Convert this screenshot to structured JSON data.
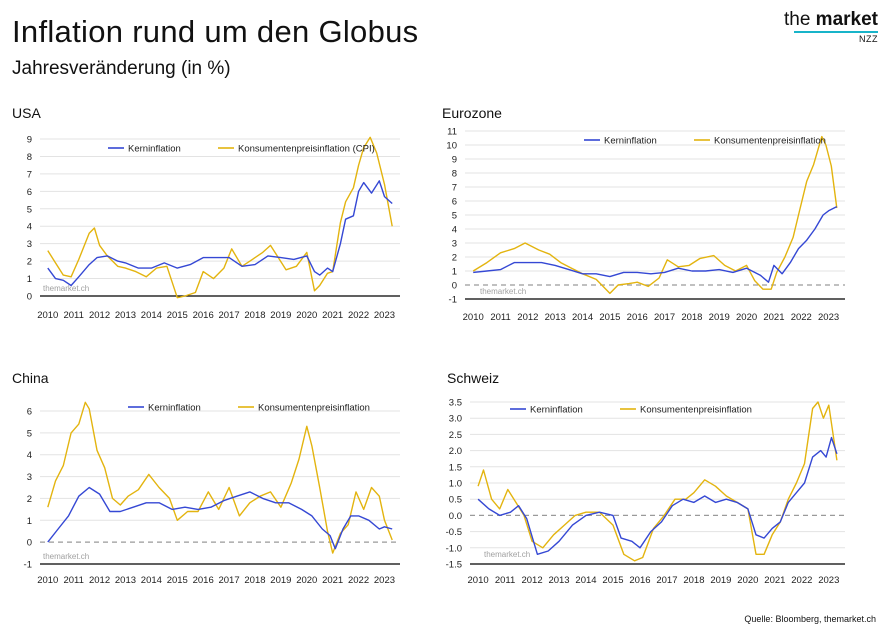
{
  "header": {
    "title": "Inflation rund um den Globus",
    "subtitle": "Jahresveränderung (in %)"
  },
  "logo": {
    "part1": "the ",
    "part2": "market",
    "sub": "NZZ"
  },
  "source": "Quelle: Bloomberg, themarket.ch",
  "colors": {
    "core": "#3548d4",
    "cpi": "#e3b40f",
    "grid": "#e3e3e3",
    "zero_dashed": "#9a9a9a"
  },
  "chart_data": [
    {
      "type": "line",
      "title": "USA",
      "watermark": "themarket.ch",
      "xlim": [
        2009.7,
        2023.6
      ],
      "ylim": [
        0,
        9
      ],
      "yticks": [
        0,
        1,
        2,
        3,
        4,
        5,
        6,
        7,
        8,
        9
      ],
      "ytick_labels": [
        "0",
        "1",
        "2",
        "3",
        "4",
        "5",
        "6",
        "7",
        "8",
        "9"
      ],
      "xtick_labels": [
        "2010",
        "2011",
        "2012",
        "2013",
        "2014",
        "2015",
        "2016",
        "2017",
        "2018",
        "2019",
        "2020",
        "2021",
        "2022",
        "2023"
      ],
      "zero_line": "solid",
      "legend": "top-center",
      "series": [
        {
          "name": "Kerninflation",
          "color": "#3548d4",
          "x": [
            2010.0,
            2010.3,
            2010.6,
            2010.9,
            2011.2,
            2011.6,
            2011.9,
            2012.3,
            2012.7,
            2013.0,
            2013.5,
            2014.0,
            2014.5,
            2015.0,
            2015.5,
            2016.0,
            2016.5,
            2017.0,
            2017.5,
            2018.0,
            2018.5,
            2019.0,
            2019.5,
            2020.0,
            2020.3,
            2020.5,
            2020.8,
            2021.0,
            2021.3,
            2021.5,
            2021.8,
            2022.0,
            2022.2,
            2022.5,
            2022.8,
            2023.0,
            2023.3
          ],
          "y": [
            1.6,
            1.0,
            0.9,
            0.6,
            1.1,
            1.8,
            2.2,
            2.3,
            2.0,
            1.9,
            1.6,
            1.6,
            1.9,
            1.6,
            1.8,
            2.2,
            2.2,
            2.2,
            1.7,
            1.8,
            2.3,
            2.2,
            2.1,
            2.3,
            1.4,
            1.2,
            1.6,
            1.4,
            3.0,
            4.4,
            4.6,
            6.0,
            6.5,
            5.9,
            6.6,
            5.7,
            5.3
          ]
        },
        {
          "name": "Konsumentenpreisinflation (CPI)",
          "color": "#e3b40f",
          "x": [
            2010.0,
            2010.3,
            2010.6,
            2010.9,
            2011.2,
            2011.6,
            2011.8,
            2012.0,
            2012.3,
            2012.7,
            2013.0,
            2013.4,
            2013.8,
            2014.2,
            2014.6,
            2015.0,
            2015.3,
            2015.7,
            2016.0,
            2016.4,
            2016.8,
            2017.1,
            2017.5,
            2017.9,
            2018.3,
            2018.6,
            2018.9,
            2019.2,
            2019.6,
            2020.0,
            2020.3,
            2020.5,
            2020.8,
            2021.0,
            2021.3,
            2021.5,
            2021.8,
            2022.0,
            2022.2,
            2022.45,
            2022.7,
            2023.0,
            2023.3
          ],
          "y": [
            2.6,
            1.9,
            1.2,
            1.1,
            2.1,
            3.6,
            3.9,
            2.9,
            2.3,
            1.7,
            1.6,
            1.4,
            1.1,
            1.6,
            1.7,
            -0.1,
            0.0,
            0.2,
            1.4,
            1.0,
            1.6,
            2.7,
            1.7,
            2.1,
            2.5,
            2.9,
            2.2,
            1.5,
            1.7,
            2.5,
            0.3,
            0.6,
            1.3,
            1.4,
            4.2,
            5.4,
            6.2,
            7.5,
            8.5,
            9.1,
            8.2,
            6.4,
            4.0
          ]
        }
      ]
    },
    {
      "type": "line",
      "title": "Eurozone",
      "watermark": "themarket.ch",
      "xlim": [
        2009.7,
        2023.6
      ],
      "ylim": [
        -1,
        11
      ],
      "yticks": [
        -1,
        0,
        1,
        2,
        3,
        4,
        5,
        6,
        7,
        8,
        9,
        10,
        11
      ],
      "ytick_labels": [
        "-1",
        "0",
        "1",
        "2",
        "3",
        "4",
        "5",
        "6",
        "7",
        "8",
        "9",
        "10",
        "11"
      ],
      "xtick_labels": [
        "2010",
        "2011",
        "2012",
        "2013",
        "2014",
        "2015",
        "2016",
        "2017",
        "2018",
        "2019",
        "2020",
        "2021",
        "2022",
        "2023"
      ],
      "zero_line": "dashed",
      "legend": "top-center",
      "series": [
        {
          "name": "Kerninflation",
          "color": "#3548d4",
          "x": [
            2010.0,
            2010.5,
            2011.0,
            2011.5,
            2012.0,
            2012.5,
            2013.0,
            2013.5,
            2014.0,
            2014.5,
            2015.0,
            2015.5,
            2016.0,
            2016.5,
            2017.0,
            2017.5,
            2018.0,
            2018.5,
            2019.0,
            2019.5,
            2020.0,
            2020.5,
            2020.8,
            2021.0,
            2021.3,
            2021.6,
            2021.9,
            2022.2,
            2022.5,
            2022.8,
            2023.0,
            2023.3
          ],
          "y": [
            0.9,
            1.0,
            1.1,
            1.6,
            1.6,
            1.6,
            1.4,
            1.1,
            0.8,
            0.8,
            0.6,
            0.9,
            0.9,
            0.8,
            0.9,
            1.2,
            1.0,
            1.0,
            1.1,
            0.9,
            1.2,
            0.7,
            0.2,
            1.4,
            0.8,
            1.6,
            2.6,
            3.2,
            4.0,
            5.0,
            5.3,
            5.6
          ]
        },
        {
          "name": "Konsumentenpreisinflation",
          "color": "#e3b40f",
          "x": [
            2010.0,
            2010.5,
            2011.0,
            2011.5,
            2011.9,
            2012.4,
            2012.8,
            2013.2,
            2013.6,
            2014.0,
            2014.5,
            2015.0,
            2015.3,
            2015.7,
            2016.0,
            2016.4,
            2016.8,
            2017.1,
            2017.5,
            2017.9,
            2018.3,
            2018.8,
            2019.2,
            2019.6,
            2020.0,
            2020.3,
            2020.6,
            2020.9,
            2021.1,
            2021.4,
            2021.7,
            2021.9,
            2022.2,
            2022.45,
            2022.75,
            2022.9,
            2023.1,
            2023.3
          ],
          "y": [
            1.0,
            1.6,
            2.3,
            2.6,
            3.0,
            2.5,
            2.2,
            1.6,
            1.2,
            0.8,
            0.4,
            -0.6,
            0.0,
            0.1,
            0.2,
            -0.1,
            0.5,
            1.8,
            1.3,
            1.4,
            1.9,
            2.1,
            1.4,
            1.0,
            1.4,
            0.3,
            -0.3,
            -0.3,
            0.9,
            2.0,
            3.4,
            5.0,
            7.4,
            8.6,
            10.6,
            10.0,
            8.5,
            5.5
          ]
        }
      ]
    },
    {
      "type": "line",
      "title": "China",
      "watermark": "themarket.ch",
      "xlim": [
        2009.7,
        2023.6
      ],
      "ylim": [
        -1,
        6
      ],
      "yticks": [
        -1,
        0,
        1,
        2,
        3,
        4,
        5,
        6
      ],
      "ytick_labels": [
        "-1",
        "0",
        "1",
        "2",
        "3",
        "4",
        "5",
        "6"
      ],
      "xtick_labels": [
        "2010",
        "2011",
        "2012",
        "2013",
        "2014",
        "2015",
        "2016",
        "2017",
        "2018",
        "2019",
        "2020",
        "2021",
        "2022",
        "2023"
      ],
      "zero_line": "dashed",
      "legend": "top-center",
      "series": [
        {
          "name": "Kerninflation",
          "color": "#3548d4",
          "x": [
            2010.0,
            2010.4,
            2010.8,
            2011.2,
            2011.6,
            2012.0,
            2012.4,
            2012.8,
            2013.3,
            2013.8,
            2014.3,
            2014.8,
            2015.3,
            2015.8,
            2016.3,
            2016.8,
            2017.3,
            2017.8,
            2018.3,
            2018.8,
            2019.3,
            2019.8,
            2020.2,
            2020.6,
            2020.9,
            2021.1,
            2021.4,
            2021.7,
            2022.0,
            2022.4,
            2022.8,
            2023.0,
            2023.3
          ],
          "y": [
            0.0,
            0.6,
            1.2,
            2.1,
            2.5,
            2.2,
            1.4,
            1.4,
            1.6,
            1.8,
            1.8,
            1.5,
            1.6,
            1.5,
            1.6,
            1.9,
            2.1,
            2.3,
            2.0,
            1.8,
            1.8,
            1.5,
            1.2,
            0.6,
            0.3,
            -0.3,
            0.6,
            1.2,
            1.2,
            1.0,
            0.6,
            0.7,
            0.6
          ]
        },
        {
          "name": "Konsumentenpreisinflation",
          "color": "#e3b40f",
          "x": [
            2010.0,
            2010.3,
            2010.6,
            2010.9,
            2011.2,
            2011.45,
            2011.6,
            2011.9,
            2012.2,
            2012.5,
            2012.8,
            2013.1,
            2013.5,
            2013.9,
            2014.3,
            2014.7,
            2015.0,
            2015.4,
            2015.8,
            2016.2,
            2016.6,
            2017.0,
            2017.4,
            2017.8,
            2018.2,
            2018.6,
            2019.0,
            2019.4,
            2019.7,
            2020.0,
            2020.2,
            2020.5,
            2020.8,
            2021.0,
            2021.3,
            2021.6,
            2021.9,
            2022.2,
            2022.5,
            2022.8,
            2023.0,
            2023.3
          ],
          "y": [
            1.6,
            2.8,
            3.5,
            5.0,
            5.4,
            6.4,
            6.1,
            4.2,
            3.4,
            2.0,
            1.7,
            2.1,
            2.4,
            3.1,
            2.5,
            2.0,
            1.0,
            1.4,
            1.4,
            2.3,
            1.5,
            2.5,
            1.2,
            1.8,
            2.1,
            2.3,
            1.6,
            2.7,
            3.8,
            5.3,
            4.4,
            2.5,
            0.5,
            -0.5,
            0.4,
            0.8,
            2.3,
            1.5,
            2.5,
            2.1,
            1.0,
            0.1
          ]
        }
      ]
    },
    {
      "type": "line",
      "title": "Schweiz",
      "watermark": "themarket.ch",
      "xlim": [
        2009.7,
        2023.6
      ],
      "ylim": [
        -1.5,
        3.5
      ],
      "yticks": [
        -1.5,
        -1.0,
        -0.5,
        0.0,
        0.5,
        1.0,
        1.5,
        2.0,
        2.5,
        3.0,
        3.5
      ],
      "ytick_labels": [
        "-1.5",
        "-1.0",
        "-0.5",
        "0.0",
        "0.5",
        "1.0",
        "1.5",
        "2.0",
        "2.5",
        "3.0",
        "3.5"
      ],
      "xtick_labels": [
        "2010",
        "2011",
        "2012",
        "2013",
        "2014",
        "2015",
        "2016",
        "2017",
        "2018",
        "2019",
        "2020",
        "2021",
        "2022",
        "2023"
      ],
      "zero_line": "dashed",
      "legend": "top-center",
      "series": [
        {
          "name": "Kerninflation",
          "color": "#3548d4",
          "x": [
            2010.0,
            2010.4,
            2010.8,
            2011.2,
            2011.5,
            2011.8,
            2012.2,
            2012.6,
            2013.0,
            2013.5,
            2014.0,
            2014.5,
            2015.0,
            2015.3,
            2015.7,
            2016.0,
            2016.4,
            2016.8,
            2017.2,
            2017.6,
            2018.0,
            2018.4,
            2018.8,
            2019.2,
            2019.6,
            2020.0,
            2020.3,
            2020.6,
            2020.9,
            2021.2,
            2021.5,
            2021.8,
            2022.1,
            2022.4,
            2022.7,
            2022.9,
            2023.1,
            2023.3
          ],
          "y": [
            0.5,
            0.2,
            0.0,
            0.1,
            0.3,
            -0.1,
            -1.2,
            -1.1,
            -0.8,
            -0.3,
            0.0,
            0.1,
            0.0,
            -0.7,
            -0.8,
            -1.0,
            -0.5,
            -0.2,
            0.3,
            0.5,
            0.4,
            0.6,
            0.4,
            0.5,
            0.4,
            0.2,
            -0.6,
            -0.7,
            -0.4,
            -0.2,
            0.4,
            0.7,
            1.0,
            1.8,
            2.0,
            1.8,
            2.4,
            1.9
          ]
        },
        {
          "name": "Konsumentenpreisinflation",
          "color": "#e3b40f",
          "x": [
            2010.0,
            2010.2,
            2010.5,
            2010.8,
            2011.1,
            2011.4,
            2011.7,
            2012.0,
            2012.4,
            2012.8,
            2013.2,
            2013.6,
            2014.0,
            2014.5,
            2015.0,
            2015.4,
            2015.8,
            2016.1,
            2016.5,
            2016.9,
            2017.3,
            2017.7,
            2018.0,
            2018.4,
            2018.8,
            2019.2,
            2019.6,
            2020.0,
            2020.3,
            2020.6,
            2020.9,
            2021.2,
            2021.5,
            2021.8,
            2022.1,
            2022.4,
            2022.6,
            2022.8,
            2023.0,
            2023.3
          ],
          "y": [
            0.9,
            1.4,
            0.5,
            0.2,
            0.8,
            0.4,
            0.0,
            -0.8,
            -1.0,
            -0.6,
            -0.3,
            0.0,
            0.1,
            0.1,
            -0.3,
            -1.2,
            -1.4,
            -1.3,
            -0.4,
            0.0,
            0.5,
            0.5,
            0.7,
            1.1,
            0.9,
            0.6,
            0.4,
            0.2,
            -1.2,
            -1.2,
            -0.6,
            -0.2,
            0.5,
            1.0,
            1.6,
            3.3,
            3.5,
            3.0,
            3.4,
            1.7
          ]
        }
      ]
    }
  ]
}
